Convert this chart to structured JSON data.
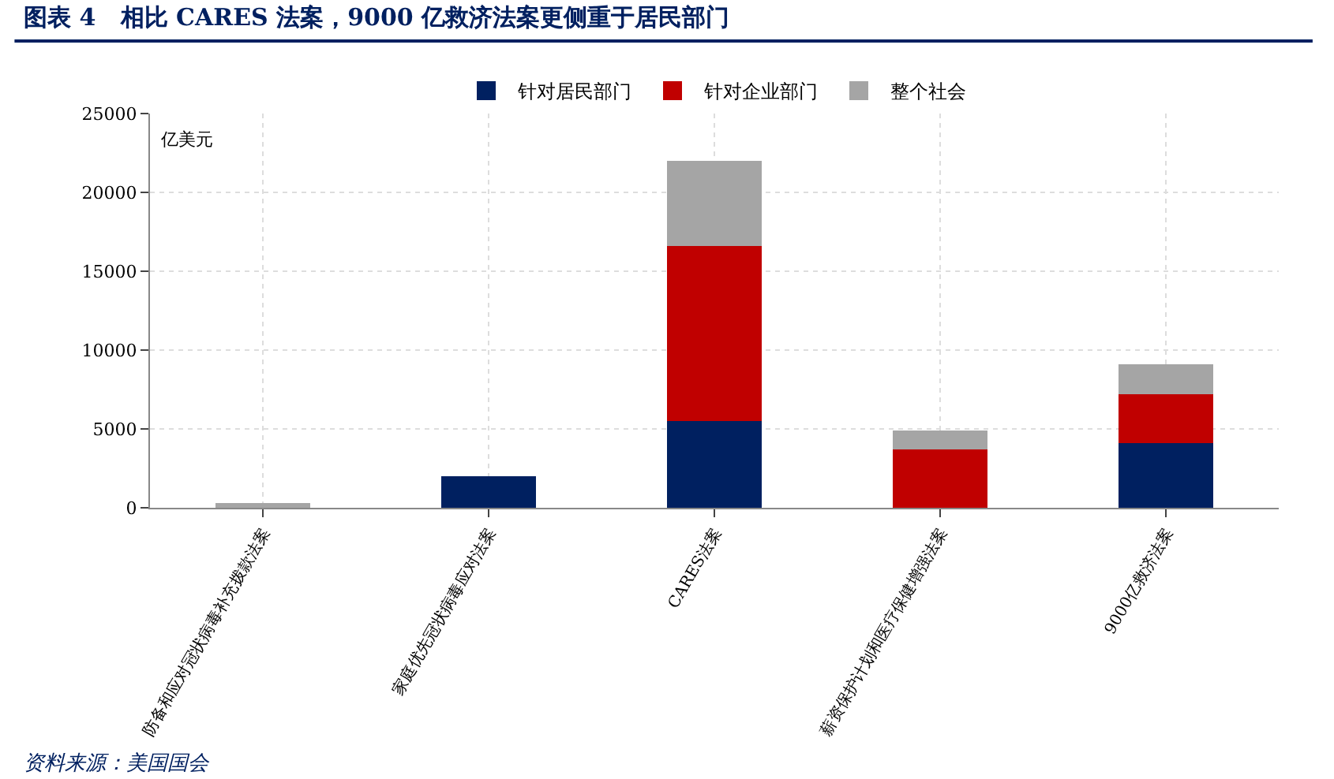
{
  "chart_data": {
    "type": "bar",
    "title": "图表 4   相比 CARES 法案，9000 亿救济法案更侧重于居民部门",
    "ylabel": "亿美元",
    "categories": [
      "防备和应对冠状病毒补充拨款法案",
      "家庭优先冠状病毒应对法案",
      "CARES法案",
      "薪资保护计划和医疗保健增强法案",
      "9000亿救济法案"
    ],
    "stacked": true,
    "series": [
      {
        "name": "针对居民部门",
        "color": "#002060",
        "values": [
          null,
          2000,
          5500,
          null,
          4100
        ]
      },
      {
        "name": "针对企业部门",
        "color": "#c00000",
        "values": [
          null,
          null,
          11100,
          3700,
          3100
        ]
      },
      {
        "name": "整个社会",
        "color": "#a5a5a5",
        "values": [
          300,
          null,
          5400,
          1200,
          1900
        ]
      }
    ],
    "ylim": [
      0,
      25000
    ],
    "yticks": [
      0,
      5000,
      10000,
      15000,
      20000,
      25000
    ],
    "grid": true,
    "legend": "top",
    "annotations": [
      "资料来源：美国国会"
    ]
  }
}
